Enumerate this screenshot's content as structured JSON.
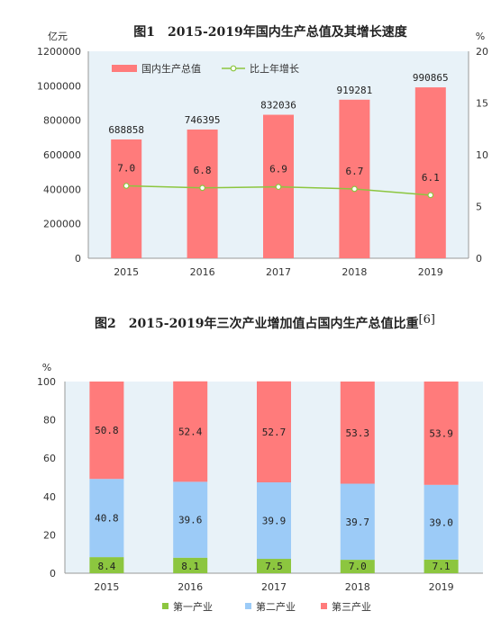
{
  "chart_data": [
    {
      "type": "bar",
      "title": "图1　2015-2019年国内生产总值及其增长速度",
      "left_unit": "亿元",
      "right_unit": "%",
      "categories": [
        "2015",
        "2016",
        "2017",
        "2018",
        "2019"
      ],
      "series": [
        {
          "name": "国内生产总值",
          "type": "bar",
          "axis": "left",
          "color": "#ff7b7b",
          "values": [
            688858,
            746395,
            832036,
            919281,
            990865
          ],
          "labels": [
            "688858",
            "746395",
            "832036",
            "919281",
            "990865"
          ]
        },
        {
          "name": "比上年增长",
          "type": "line",
          "axis": "right",
          "color": "#8cc63f",
          "values": [
            7.0,
            6.8,
            6.9,
            6.7,
            6.1
          ],
          "labels": [
            "7.0",
            "6.8",
            "6.9",
            "6.7",
            "6.1"
          ]
        }
      ],
      "ylim_left": [
        0,
        1200000
      ],
      "yticks_left": [
        "0",
        "200000",
        "400000",
        "600000",
        "800000",
        "1000000",
        "1200000"
      ],
      "ylim_right": [
        0,
        20
      ],
      "yticks_right": [
        "0",
        "5",
        "10",
        "15",
        "20"
      ],
      "legend_position": "top-left",
      "plot_background": "#e8f2f8"
    },
    {
      "type": "bar",
      "stacked": true,
      "title": "图2　2015-2019年三次产业增加值占国内生产总值比重",
      "title_superscript": "[6]",
      "ylabel": "%",
      "categories": [
        "2015",
        "2016",
        "2017",
        "2018",
        "2019"
      ],
      "series": [
        {
          "name": "第一产业",
          "color": "#8cc63f",
          "values": [
            8.4,
            8.1,
            7.5,
            7.0,
            7.1
          ],
          "labels": [
            "8.4",
            "8.1",
            "7.5",
            "7.0",
            "7.1"
          ]
        },
        {
          "name": "第二产业",
          "color": "#9ccbf7",
          "values": [
            40.8,
            39.6,
            39.9,
            39.7,
            39.0
          ],
          "labels": [
            "40.8",
            "39.6",
            "39.9",
            "39.7",
            "39.0"
          ]
        },
        {
          "name": "第三产业",
          "color": "#ff7b7b",
          "values": [
            50.8,
            52.4,
            52.7,
            53.3,
            53.9
          ],
          "labels": [
            "50.8",
            "52.4",
            "52.7",
            "53.3",
            "53.9"
          ]
        }
      ],
      "ylim": [
        0,
        100
      ],
      "yticks": [
        "0",
        "20",
        "40",
        "60",
        "80",
        "100"
      ],
      "legend_position": "bottom",
      "plot_background": "#e8f2f8"
    }
  ]
}
